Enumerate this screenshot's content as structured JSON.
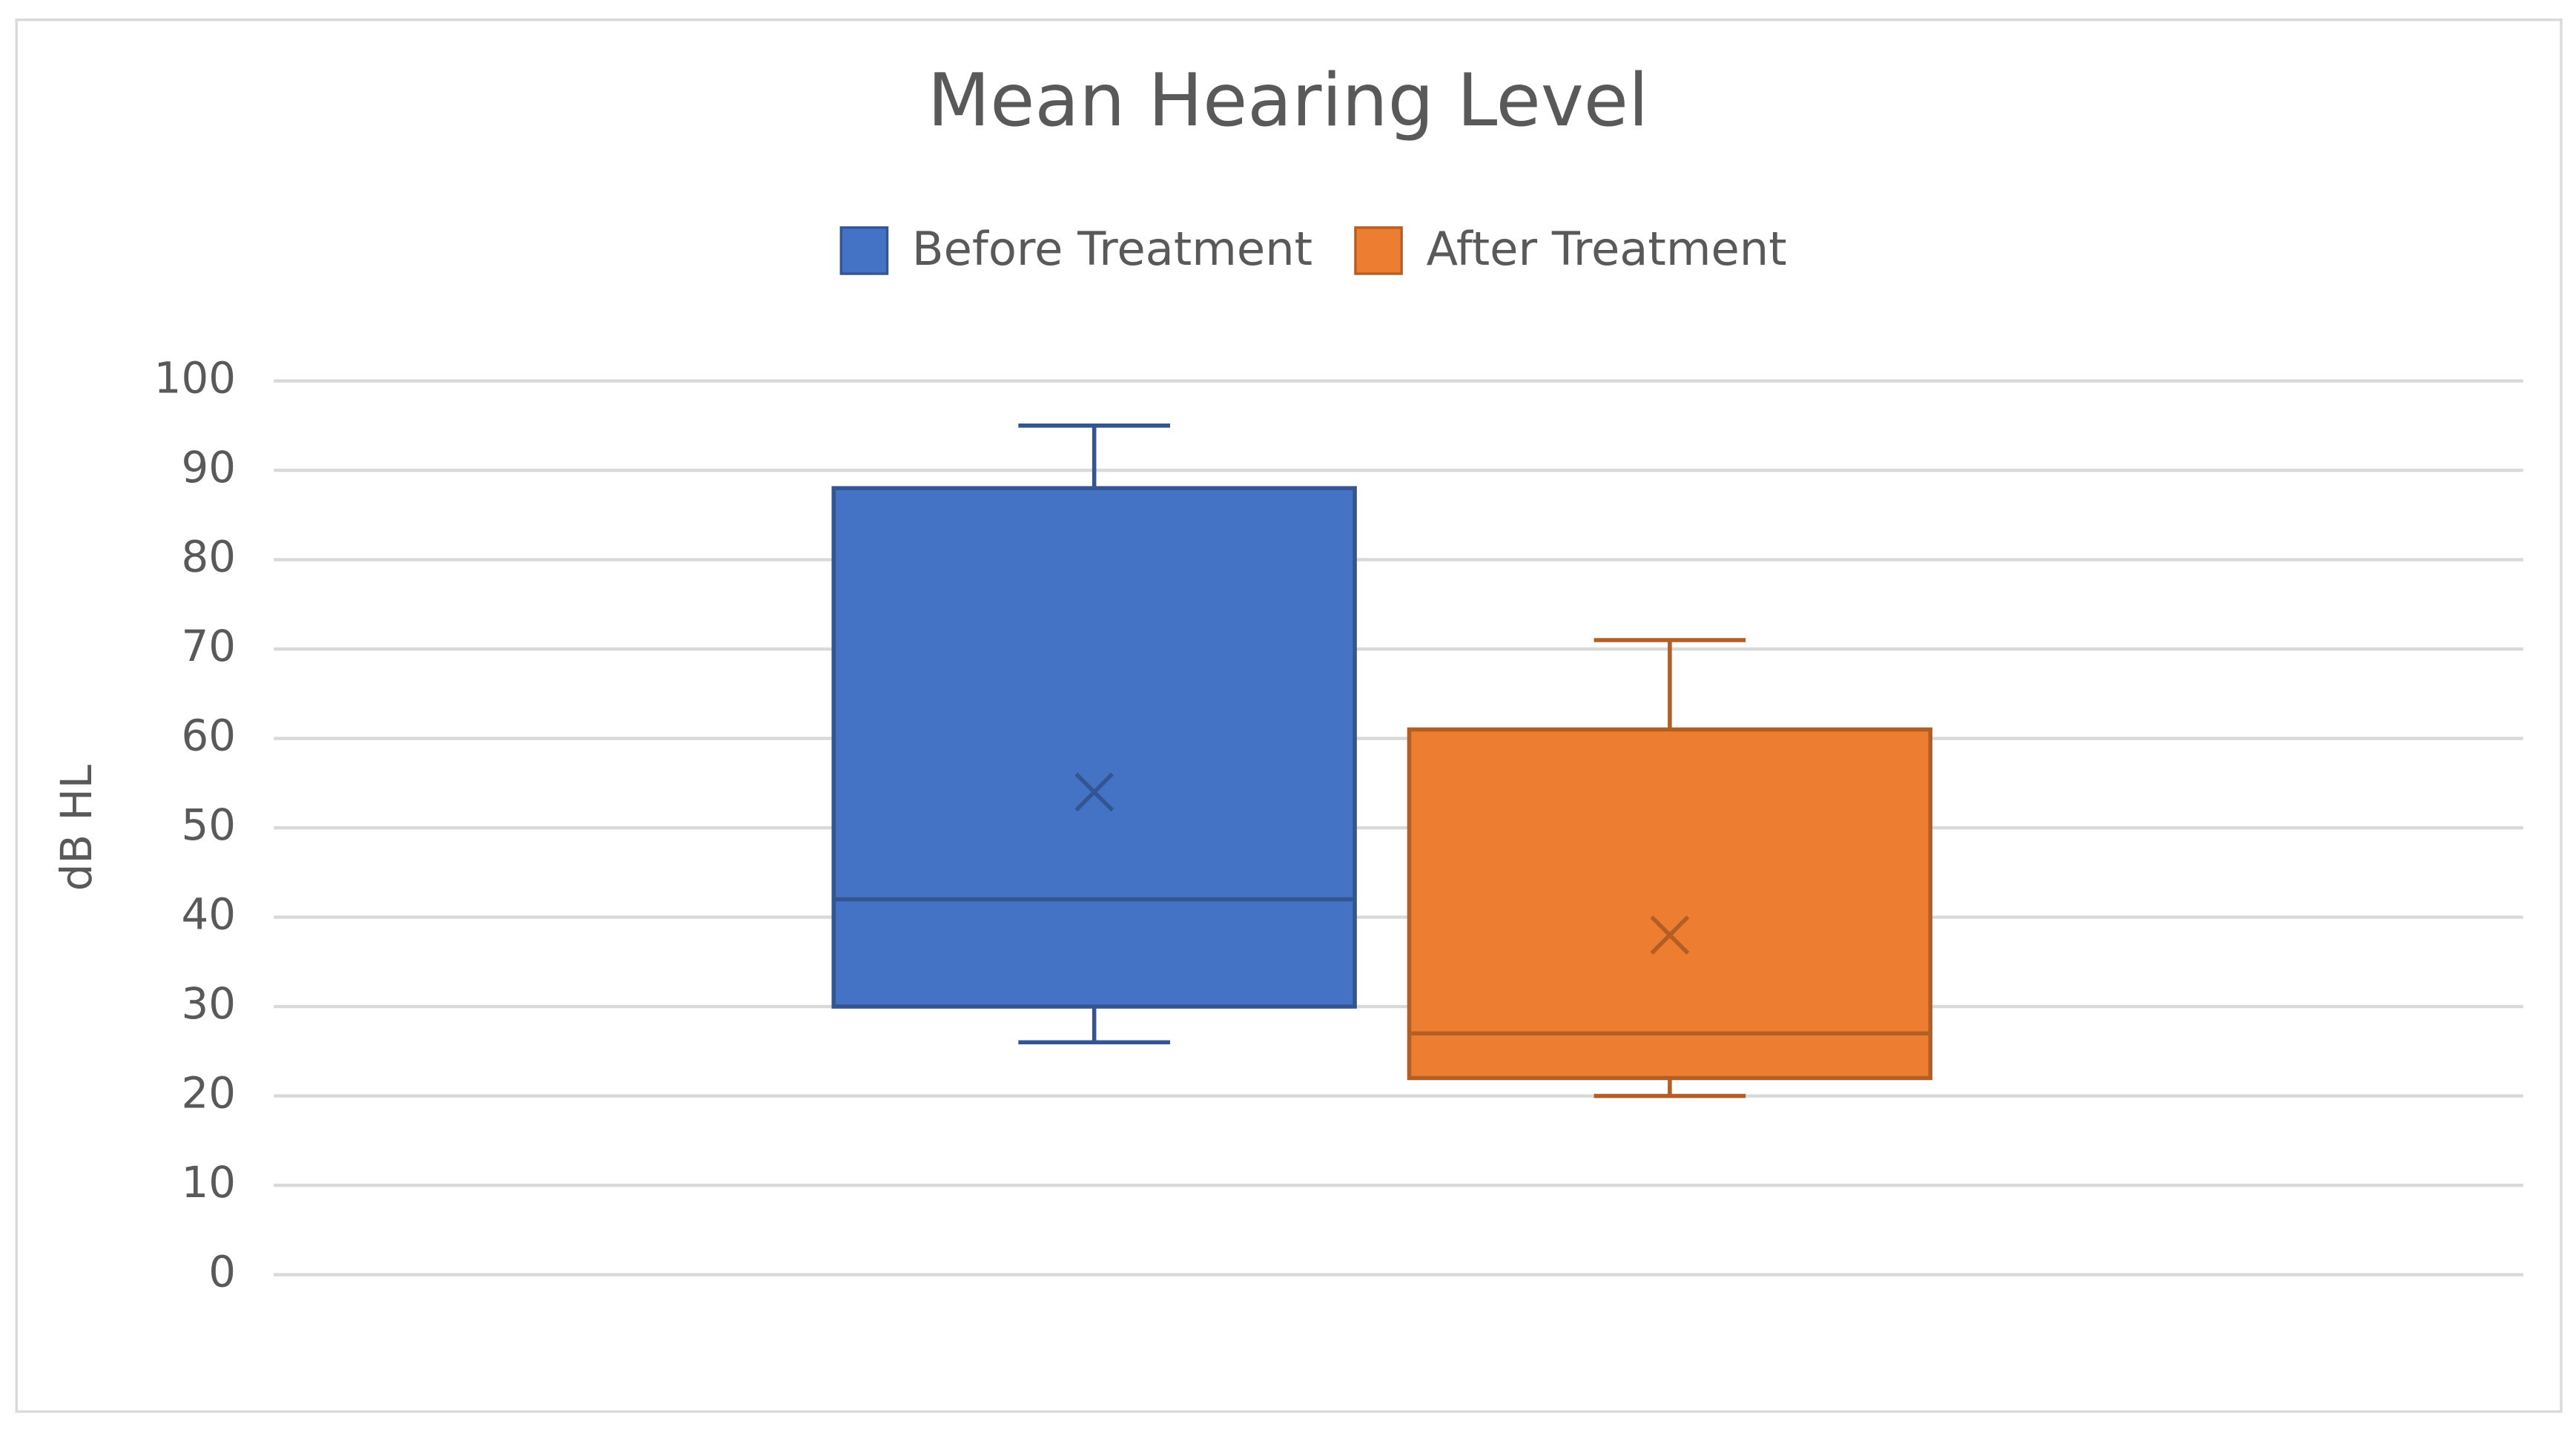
{
  "chart_data": {
    "type": "box",
    "title": "Mean Hearing Level",
    "y_label": "dB HL",
    "ylim": [
      0,
      100
    ],
    "yticks": [
      0,
      10,
      20,
      30,
      40,
      50,
      60,
      70,
      80,
      90,
      100
    ],
    "grid": true,
    "legend": "top",
    "series": [
      {
        "name": "Before Treatment",
        "color": "#4472c4",
        "min": 26,
        "q1": 30,
        "median": 42,
        "q3": 88,
        "max": 95,
        "mean": 54
      },
      {
        "name": "After Treatment",
        "color": "#ed7d31",
        "min": 20,
        "q1": 22,
        "median": 27,
        "q3": 61,
        "max": 71,
        "mean": 38
      }
    ]
  }
}
